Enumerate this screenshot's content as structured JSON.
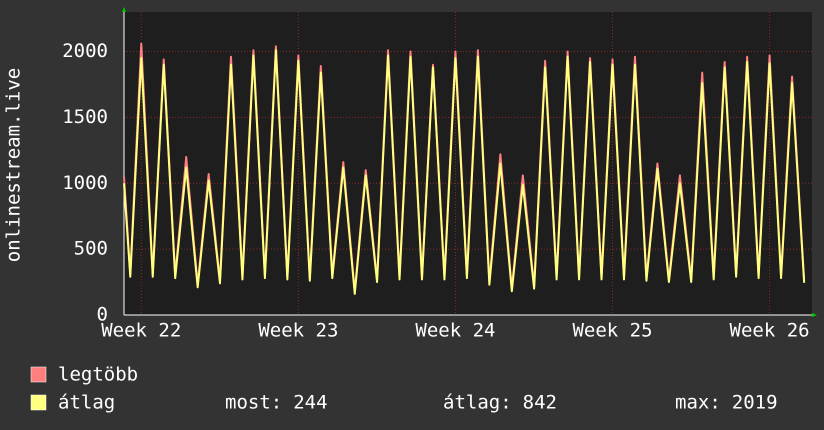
{
  "chart_data": {
    "type": "line",
    "ylabel": "onlinestream.live",
    "x": [
      21.89,
      21.93,
      22,
      22.073,
      22.143,
      22.216,
      22.286,
      22.359,
      22.429,
      22.501,
      22.571,
      22.644,
      22.714,
      22.787,
      22.857,
      22.93,
      23,
      23.073,
      23.143,
      23.216,
      23.286,
      23.359,
      23.429,
      23.501,
      23.571,
      23.644,
      23.714,
      23.787,
      23.857,
      23.93,
      24,
      24.073,
      24.143,
      24.216,
      24.286,
      24.359,
      24.429,
      24.501,
      24.571,
      24.644,
      24.714,
      24.787,
      24.857,
      24.93,
      25,
      25.073,
      25.143,
      25.216,
      25.286,
      25.359,
      25.429,
      25.501,
      25.571,
      25.644,
      25.714,
      25.787,
      25.857,
      25.93,
      26,
      26.073,
      26.143,
      26.22
    ],
    "series": [
      {
        "name": "legtöbb",
        "color": "#ff7f7f",
        "values": [
          1050,
          310,
          2060,
          310,
          1940,
          300,
          1200,
          230,
          1070,
          260,
          1960,
          290,
          2010,
          300,
          2040,
          290,
          1970,
          280,
          1890,
          300,
          1160,
          180,
          1100,
          270,
          2010,
          290,
          2000,
          290,
          1900,
          290,
          2000,
          300,
          2010,
          250,
          1220,
          200,
          1060,
          220,
          1930,
          290,
          2000,
          290,
          1950,
          290,
          1940,
          290,
          1960,
          280,
          1150,
          270,
          1060,
          270,
          1840,
          290,
          1920,
          310,
          1960,
          300,
          1970,
          300,
          1810,
          260
        ]
      },
      {
        "name": "átlag",
        "color": "#ffff80",
        "values": [
          1000,
          290,
          1950,
          290,
          1900,
          280,
          1120,
          210,
          1020,
          240,
          1900,
          270,
          1970,
          280,
          2010,
          270,
          1930,
          260,
          1840,
          280,
          1120,
          160,
          1060,
          250,
          1970,
          270,
          1960,
          270,
          1880,
          270,
          1950,
          280,
          1960,
          230,
          1150,
          180,
          990,
          200,
          1880,
          270,
          1960,
          270,
          1920,
          270,
          1900,
          270,
          1900,
          260,
          1110,
          250,
          1000,
          250,
          1760,
          270,
          1880,
          290,
          1920,
          280,
          1910,
          280,
          1760,
          244
        ]
      }
    ],
    "xlim": [
      21.89,
      26.27
    ],
    "xticks": [
      {
        "value": 22,
        "label": "Week 22"
      },
      {
        "value": 23,
        "label": "Week 23"
      },
      {
        "value": 24,
        "label": "Week 24"
      },
      {
        "value": 25,
        "label": "Week 25"
      },
      {
        "value": 26,
        "label": "Week 26"
      }
    ],
    "ylim": [
      0,
      2300
    ],
    "yticks": [
      0,
      500,
      1000,
      1500,
      2000
    ],
    "grid": true,
    "stats": [
      {
        "label": "most:",
        "value": 244
      },
      {
        "label": "átlag:",
        "value": 842
      },
      {
        "label": "max:",
        "value": 2019
      }
    ]
  }
}
